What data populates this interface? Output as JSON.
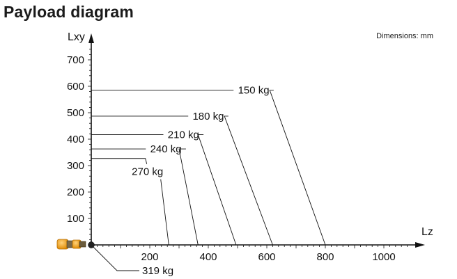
{
  "page": {
    "title": "Payload diagram",
    "dimensions_note": "Dimensions: mm"
  },
  "colors": {
    "robot_orange": "#f5a623",
    "robot_dark": "#5a4a2a",
    "axis": "#111111"
  },
  "icons": {
    "robot_flange": "robot-flange-icon"
  },
  "chart_data": {
    "type": "line",
    "xlabel": "Lz",
    "ylabel": "Lxy",
    "xlim": [
      0,
      1100
    ],
    "ylim": [
      0,
      780
    ],
    "x_ticks": [
      200,
      400,
      600,
      800,
      1000
    ],
    "y_ticks": [
      100,
      200,
      300,
      400,
      500,
      600,
      700
    ],
    "x_tick_labels": [
      "200",
      "400",
      "600",
      "800",
      "1000"
    ],
    "y_tick_labels": [
      "100",
      "200",
      "300",
      "400",
      "500",
      "600",
      "700"
    ],
    "grid": false,
    "series": [
      {
        "name": "150 kg",
        "points": [
          [
            0,
            585
          ],
          [
            610,
            585
          ],
          [
            800,
            0
          ]
        ]
      },
      {
        "name": "180 kg",
        "points": [
          [
            0,
            487
          ],
          [
            455,
            487
          ],
          [
            620,
            0
          ]
        ]
      },
      {
        "name": "210 kg",
        "points": [
          [
            0,
            417
          ],
          [
            365,
            417
          ],
          [
            495,
            0
          ]
        ]
      },
      {
        "name": "240 kg",
        "points": [
          [
            0,
            363
          ],
          [
            300,
            363
          ],
          [
            365,
            0
          ]
        ]
      },
      {
        "name": "270 kg",
        "points": [
          [
            0,
            327
          ],
          [
            185,
            327
          ],
          [
            265,
            0
          ]
        ]
      }
    ],
    "point_annotation": {
      "label": "319 kg",
      "x": 0,
      "y": 0
    }
  }
}
